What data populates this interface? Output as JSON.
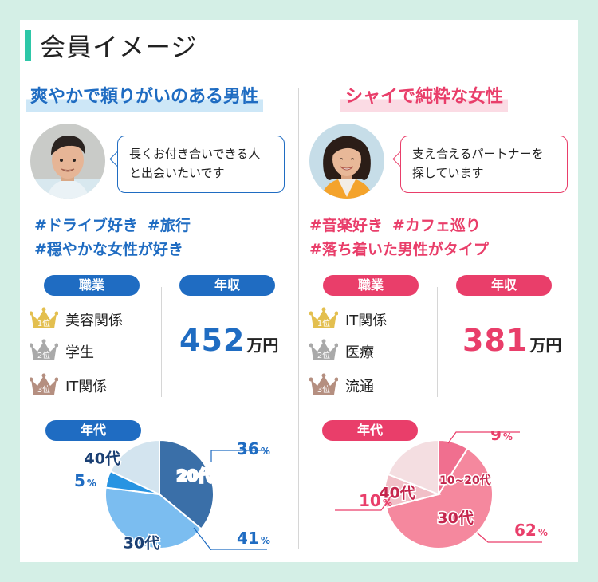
{
  "title": "会員イメージ",
  "male": {
    "heading": "爽やかで頼りがいのある男性",
    "speech": [
      "長くお付き合いできる人",
      "と出会いたいです"
    ],
    "tags": [
      "#ドライブ好き",
      "#旅行",
      "#穏やかな女性が好き"
    ],
    "job_label": "職業",
    "jobs": [
      {
        "rank": "1位",
        "name": "美容関係"
      },
      {
        "rank": "2位",
        "name": "学生"
      },
      {
        "rank": "3位",
        "name": "IT関係"
      }
    ],
    "income_label": "年収",
    "income_value": "452",
    "income_unit": "万円",
    "age_label": "年代"
  },
  "female": {
    "heading": "シャイで純粋な女性",
    "speech": [
      "支え合えるパートナーを",
      "探しています"
    ],
    "tags": [
      "#音楽好き",
      "#カフェ巡り",
      "#落ち着いた男性がタイプ"
    ],
    "job_label": "職業",
    "jobs": [
      {
        "rank": "1位",
        "name": "IT関係"
      },
      {
        "rank": "2位",
        "name": "医療"
      },
      {
        "rank": "3位",
        "name": "流通"
      }
    ],
    "income_label": "年収",
    "income_value": "381",
    "income_unit": "万円",
    "age_label": "年代"
  },
  "colors": {
    "blue": "#1f6cc2",
    "pink": "#e93e6a",
    "gold": "#e3bf4f",
    "silver": "#a9a9a9",
    "bronze": "#b58f80"
  },
  "chart_data": [
    {
      "type": "pie",
      "title": "年代",
      "unit": "%",
      "slices": [
        {
          "label": "20代",
          "value": 36,
          "color": "#3a6fa8",
          "label_color": "#ffffff"
        },
        {
          "label": "30代",
          "value": 41,
          "color": "#7bbdf0",
          "label_color": "#1a3f73"
        },
        {
          "label": "40代",
          "value": 5,
          "color": "#2894e2",
          "label_color": "#1a3f73"
        },
        {
          "label": "",
          "value": 18,
          "color": "#d3e4ef",
          "label_color": "#1a3f73"
        }
      ]
    },
    {
      "type": "pie",
      "title": "年代",
      "unit": "%",
      "slices": [
        {
          "label": "10~20代",
          "value": 9,
          "color": "#f06f8f",
          "label_color": "#c4264d"
        },
        {
          "label": "30代",
          "value": 62,
          "color": "#f5889e",
          "label_color": "#c4264d"
        },
        {
          "label": "40代",
          "value": 10,
          "color": "#f1bfc7",
          "label_color": "#c4264d"
        },
        {
          "label": "",
          "value": 19,
          "color": "#f4dee1",
          "label_color": "#c4264d"
        }
      ]
    }
  ]
}
